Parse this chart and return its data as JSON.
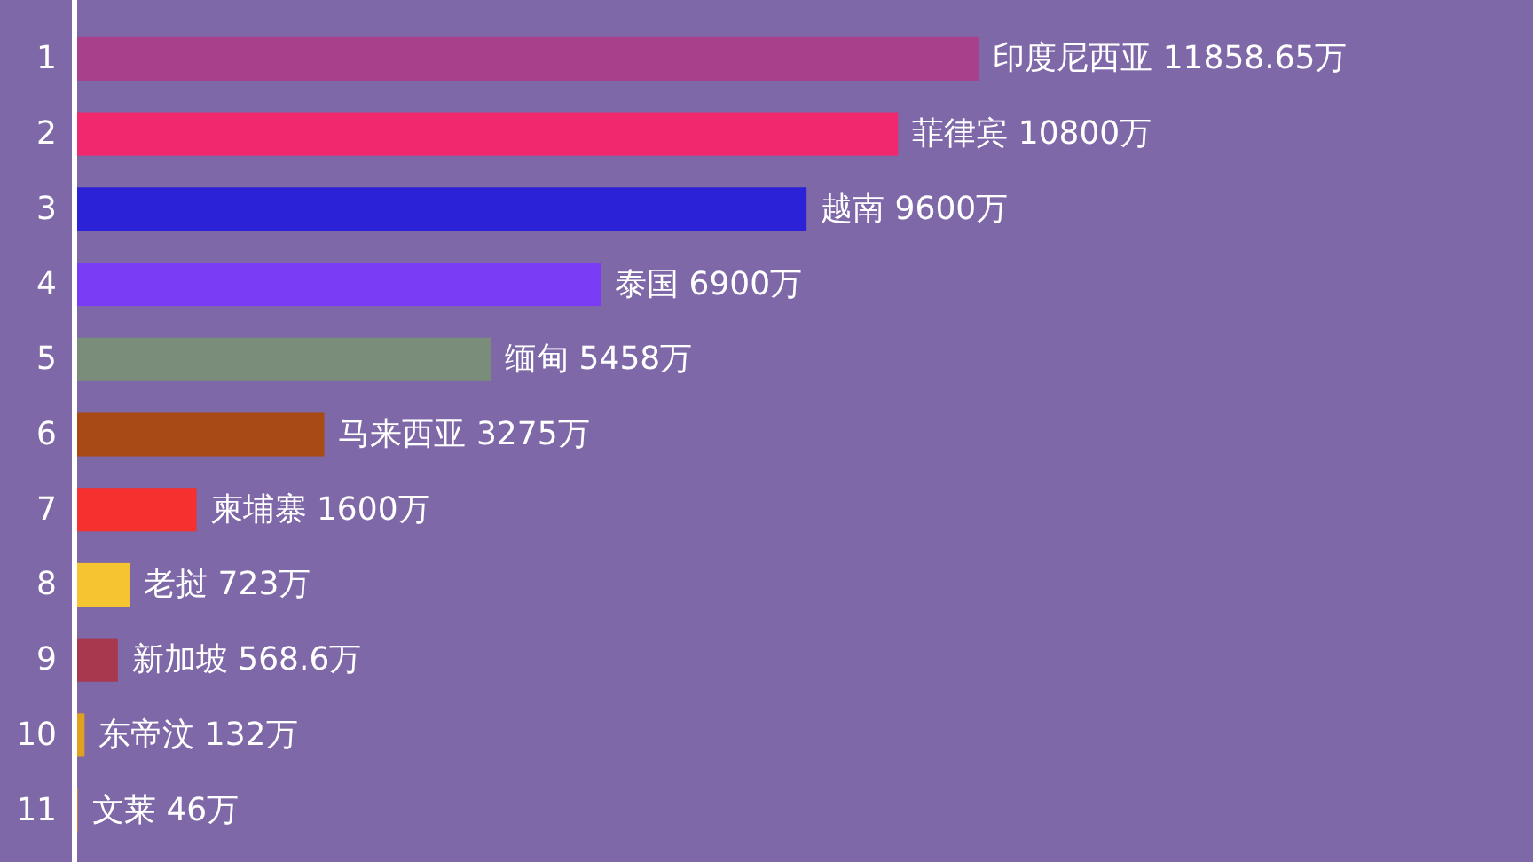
{
  "chart_data": {
    "type": "bar",
    "orientation": "horizontal",
    "categories": [
      "1",
      "2",
      "3",
      "4",
      "5",
      "6",
      "7",
      "8",
      "9",
      "10",
      "11"
    ],
    "values": [
      11858.65,
      10800,
      9600,
      6900,
      5458,
      3275,
      1600,
      723,
      568.6,
      132,
      46
    ],
    "colors": [
      "#a8408c",
      "#f0286e",
      "#2b22d8",
      "#7b3cf5",
      "#7a8c7a",
      "#a84a16",
      "#f5302f",
      "#f5c430",
      "#a8384e",
      "#e0a020",
      "#d08030"
    ],
    "value_labels": [
      "印度尼西亚 11858.65万",
      "菲律宾 10800万",
      "越南 9600万",
      "泰国 6900万",
      "缅甸 5458万",
      "马来西亚 3275万",
      "柬埔寨 1600万",
      "老挝 723万",
      "新加坡 568.6万",
      "东帝汶 132万",
      "文莱 46万"
    ]
  }
}
